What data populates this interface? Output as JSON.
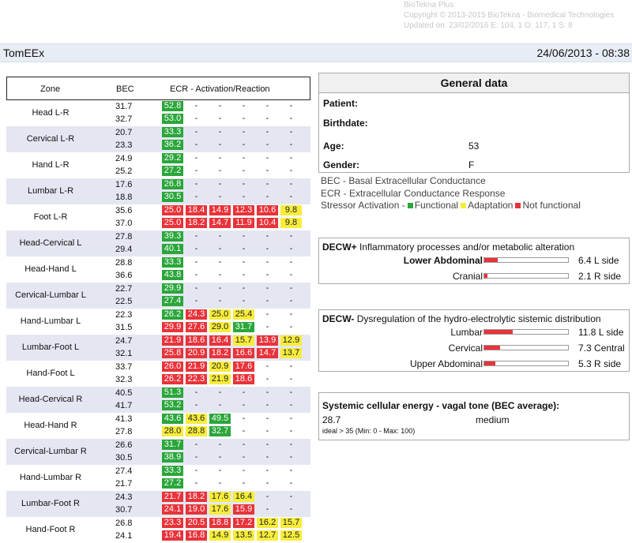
{
  "meta": {
    "product": "BioTekna Plus",
    "copyright": "Copyright © 2013-2015 BioTekna - Biomedical Technologies",
    "updated": "Updated on: 23/02/2016 E: 104, 1 O: 117, 1 S: 8"
  },
  "titlebar": {
    "app": "TomEEx",
    "datetime": "24/06/2013 - 08:38"
  },
  "table": {
    "headers": {
      "zone": "Zone",
      "bec": "BEC",
      "ecr": "ECR - Activation/Reaction"
    },
    "rows": [
      {
        "zone": "Head L-R",
        "bec": [
          "31.7",
          "32.7"
        ],
        "l1": [
          [
            "52.8",
            "g"
          ],
          [
            "-",
            "n"
          ],
          [
            "-",
            "n"
          ],
          [
            "-",
            "n"
          ],
          [
            "-",
            "n"
          ],
          [
            "-",
            "n"
          ]
        ],
        "l2": [
          [
            "53.0",
            "g"
          ],
          [
            "-",
            "n"
          ],
          [
            "-",
            "n"
          ],
          [
            "-",
            "n"
          ],
          [
            "-",
            "n"
          ],
          [
            "-",
            "n"
          ]
        ]
      },
      {
        "zone": "Cervical L-R",
        "bec": [
          "20.7",
          "23.3"
        ],
        "l1": [
          [
            "33.3",
            "g"
          ],
          [
            "-",
            "n"
          ],
          [
            "-",
            "n"
          ],
          [
            "-",
            "n"
          ],
          [
            "-",
            "n"
          ],
          [
            "-",
            "n"
          ]
        ],
        "l2": [
          [
            "36.2",
            "g"
          ],
          [
            "-",
            "n"
          ],
          [
            "-",
            "n"
          ],
          [
            "-",
            "n"
          ],
          [
            "-",
            "n"
          ],
          [
            "-",
            "n"
          ]
        ]
      },
      {
        "zone": "Hand L-R",
        "bec": [
          "24.9",
          "25.2"
        ],
        "l1": [
          [
            "29.2",
            "g"
          ],
          [
            "-",
            "n"
          ],
          [
            "-",
            "n"
          ],
          [
            "-",
            "n"
          ],
          [
            "-",
            "n"
          ],
          [
            "-",
            "n"
          ]
        ],
        "l2": [
          [
            "27.2",
            "g"
          ],
          [
            "-",
            "n"
          ],
          [
            "-",
            "n"
          ],
          [
            "-",
            "n"
          ],
          [
            "-",
            "n"
          ],
          [
            "-",
            "n"
          ]
        ]
      },
      {
        "zone": "Lumbar L-R",
        "bec": [
          "17.6",
          "18.8"
        ],
        "l1": [
          [
            "26.8",
            "g"
          ],
          [
            "-",
            "n"
          ],
          [
            "-",
            "n"
          ],
          [
            "-",
            "n"
          ],
          [
            "-",
            "n"
          ],
          [
            "-",
            "n"
          ]
        ],
        "l2": [
          [
            "30.5",
            "g"
          ],
          [
            "-",
            "n"
          ],
          [
            "-",
            "n"
          ],
          [
            "-",
            "n"
          ],
          [
            "-",
            "n"
          ],
          [
            "-",
            "n"
          ]
        ]
      },
      {
        "zone": "Foot L-R",
        "bec": [
          "35.6",
          "37.0"
        ],
        "l1": [
          [
            "25.0",
            "r"
          ],
          [
            "18.4",
            "r"
          ],
          [
            "14.9",
            "r"
          ],
          [
            "12.3",
            "r"
          ],
          [
            "10.6",
            "r"
          ],
          [
            "9.8",
            "y"
          ]
        ],
        "l2": [
          [
            "25.0",
            "r"
          ],
          [
            "18.2",
            "r"
          ],
          [
            "14.7",
            "r"
          ],
          [
            "11.9",
            "r"
          ],
          [
            "10.4",
            "r"
          ],
          [
            "9.8",
            "y"
          ]
        ]
      },
      {
        "zone": "Head-Cervical L",
        "bec": [
          "27.8",
          "29.4"
        ],
        "l1": [
          [
            "39.3",
            "g"
          ],
          [
            "-",
            "n"
          ],
          [
            "-",
            "n"
          ],
          [
            "-",
            "n"
          ],
          [
            "-",
            "n"
          ],
          [
            "-",
            "n"
          ]
        ],
        "l2": [
          [
            "40.1",
            "g"
          ],
          [
            "-",
            "n"
          ],
          [
            "-",
            "n"
          ],
          [
            "-",
            "n"
          ],
          [
            "-",
            "n"
          ],
          [
            "-",
            "n"
          ]
        ]
      },
      {
        "zone": "Head-Hand L",
        "bec": [
          "28.8",
          "36.6"
        ],
        "l1": [
          [
            "33.3",
            "g"
          ],
          [
            "-",
            "n"
          ],
          [
            "-",
            "n"
          ],
          [
            "-",
            "n"
          ],
          [
            "-",
            "n"
          ],
          [
            "-",
            "n"
          ]
        ],
        "l2": [
          [
            "43.8",
            "g"
          ],
          [
            "-",
            "n"
          ],
          [
            "-",
            "n"
          ],
          [
            "-",
            "n"
          ],
          [
            "-",
            "n"
          ],
          [
            "-",
            "n"
          ]
        ]
      },
      {
        "zone": "Cervical-Lumbar L",
        "bec": [
          "22.7",
          "22.5"
        ],
        "l1": [
          [
            "29.9",
            "g"
          ],
          [
            "-",
            "n"
          ],
          [
            "-",
            "n"
          ],
          [
            "-",
            "n"
          ],
          [
            "-",
            "n"
          ],
          [
            "-",
            "n"
          ]
        ],
        "l2": [
          [
            "27.4",
            "g"
          ],
          [
            "-",
            "n"
          ],
          [
            "-",
            "n"
          ],
          [
            "-",
            "n"
          ],
          [
            "-",
            "n"
          ],
          [
            "-",
            "n"
          ]
        ]
      },
      {
        "zone": "Hand-Lumbar L",
        "bec": [
          "22.3",
          "31.5"
        ],
        "l1": [
          [
            "26.2",
            "g"
          ],
          [
            "24.3",
            "r"
          ],
          [
            "25.0",
            "y"
          ],
          [
            "25.4",
            "y"
          ],
          [
            "-",
            "n"
          ],
          [
            "-",
            "n"
          ]
        ],
        "l2": [
          [
            "29.9",
            "r"
          ],
          [
            "27.6",
            "r"
          ],
          [
            "29.0",
            "y"
          ],
          [
            "31.7",
            "g"
          ],
          [
            "-",
            "n"
          ],
          [
            "-",
            "n"
          ]
        ]
      },
      {
        "zone": "Lumbar-Foot L",
        "bec": [
          "24.7",
          "32.1"
        ],
        "l1": [
          [
            "21.9",
            "r"
          ],
          [
            "18.6",
            "r"
          ],
          [
            "16.4",
            "r"
          ],
          [
            "15.7",
            "y"
          ],
          [
            "13.9",
            "r"
          ],
          [
            "12.9",
            "y"
          ]
        ],
        "l2": [
          [
            "25.8",
            "r"
          ],
          [
            "20.9",
            "r"
          ],
          [
            "18.2",
            "r"
          ],
          [
            "16.6",
            "r"
          ],
          [
            "14.7",
            "r"
          ],
          [
            "13.7",
            "y"
          ]
        ]
      },
      {
        "zone": "Hand-Foot L",
        "bec": [
          "33.7",
          "32.3"
        ],
        "l1": [
          [
            "26.0",
            "r"
          ],
          [
            "21.9",
            "r"
          ],
          [
            "20.9",
            "y"
          ],
          [
            "17.6",
            "r"
          ],
          [
            "-",
            "n"
          ],
          [
            "-",
            "n"
          ]
        ],
        "l2": [
          [
            "26.2",
            "r"
          ],
          [
            "22.3",
            "r"
          ],
          [
            "21.9",
            "y"
          ],
          [
            "18.6",
            "r"
          ],
          [
            "-",
            "n"
          ],
          [
            "-",
            "n"
          ]
        ]
      },
      {
        "zone": "Head-Cervical R",
        "bec": [
          "40.5",
          "41.7"
        ],
        "l1": [
          [
            "51.3",
            "g"
          ],
          [
            "-",
            "n"
          ],
          [
            "-",
            "n"
          ],
          [
            "-",
            "n"
          ],
          [
            "-",
            "n"
          ],
          [
            "-",
            "n"
          ]
        ],
        "l2": [
          [
            "53.2",
            "g"
          ],
          [
            "-",
            "n"
          ],
          [
            "-",
            "n"
          ],
          [
            "-",
            "n"
          ],
          [
            "-",
            "n"
          ],
          [
            "-",
            "n"
          ]
        ]
      },
      {
        "zone": "Head-Hand R",
        "bec": [
          "41.3",
          "27.8"
        ],
        "l1": [
          [
            "43.6",
            "g"
          ],
          [
            "43.6",
            "y"
          ],
          [
            "49.5",
            "g"
          ],
          [
            "-",
            "n"
          ],
          [
            "-",
            "n"
          ],
          [
            "-",
            "n"
          ]
        ],
        "l2": [
          [
            "28.0",
            "y"
          ],
          [
            "28.8",
            "y"
          ],
          [
            "32.7",
            "g"
          ],
          [
            "-",
            "n"
          ],
          [
            "-",
            "n"
          ],
          [
            "-",
            "n"
          ]
        ]
      },
      {
        "zone": "Cervical-Lumbar R",
        "bec": [
          "26.6",
          "30.5"
        ],
        "l1": [
          [
            "31.7",
            "g"
          ],
          [
            "-",
            "n"
          ],
          [
            "-",
            "n"
          ],
          [
            "-",
            "n"
          ],
          [
            "-",
            "n"
          ],
          [
            "-",
            "n"
          ]
        ],
        "l2": [
          [
            "38.9",
            "g"
          ],
          [
            "-",
            "n"
          ],
          [
            "-",
            "n"
          ],
          [
            "-",
            "n"
          ],
          [
            "-",
            "n"
          ],
          [
            "-",
            "n"
          ]
        ]
      },
      {
        "zone": "Hand-Lumbar R",
        "bec": [
          "27.4",
          "21.7"
        ],
        "l1": [
          [
            "33.3",
            "g"
          ],
          [
            "-",
            "n"
          ],
          [
            "-",
            "n"
          ],
          [
            "-",
            "n"
          ],
          [
            "-",
            "n"
          ],
          [
            "-",
            "n"
          ]
        ],
        "l2": [
          [
            "27.2",
            "g"
          ],
          [
            "-",
            "n"
          ],
          [
            "-",
            "n"
          ],
          [
            "-",
            "n"
          ],
          [
            "-",
            "n"
          ],
          [
            "-",
            "n"
          ]
        ]
      },
      {
        "zone": "Lumbar-Foot R",
        "bec": [
          "24.3",
          "30.7"
        ],
        "l1": [
          [
            "21.7",
            "r"
          ],
          [
            "18.2",
            "r"
          ],
          [
            "17.6",
            "y"
          ],
          [
            "16.4",
            "y"
          ],
          [
            "-",
            "n"
          ],
          [
            "-",
            "n"
          ]
        ],
        "l2": [
          [
            "24.1",
            "r"
          ],
          [
            "19.0",
            "r"
          ],
          [
            "17.6",
            "y"
          ],
          [
            "15.9",
            "r"
          ],
          [
            "-",
            "n"
          ],
          [
            "-",
            "n"
          ]
        ]
      },
      {
        "zone": "Hand-Foot R",
        "bec": [
          "26.8",
          "24.1"
        ],
        "l1": [
          [
            "23.3",
            "r"
          ],
          [
            "20.5",
            "r"
          ],
          [
            "18.8",
            "r"
          ],
          [
            "17.2",
            "r"
          ],
          [
            "16.2",
            "y"
          ],
          [
            "15.7",
            "y"
          ]
        ],
        "l2": [
          [
            "19.4",
            "r"
          ],
          [
            "16.8",
            "r"
          ],
          [
            "14.9",
            "y"
          ],
          [
            "13.5",
            "y"
          ],
          [
            "12.7",
            "y"
          ],
          [
            "12.5",
            "y"
          ]
        ]
      }
    ]
  },
  "general": {
    "title": "General data",
    "patient_label": "Patient:",
    "birthdate_label": "Birthdate:",
    "age_label": "Age:",
    "age_value": "53",
    "gender_label": "Gender:",
    "gender_value": "F"
  },
  "legend": {
    "bec": "BEC - Basal Extracellular Conductance",
    "ecr": "ECR - Extracellular Conductance Response",
    "stressor_prefix": "Stressor Activation -",
    "functional": "Functional",
    "adaptation": "Adaptation",
    "not_functional": "Not functional",
    "colors": {
      "functional": "#2aa63a",
      "adaptation": "#f7ec3c",
      "not_functional": "#e8333a"
    }
  },
  "decw_plus": {
    "title_bold": "DECW+",
    "title_rest": " Inflammatory processes and/or metabolic alteration",
    "items": [
      {
        "label": "Lower Abdominal",
        "bold": true,
        "value": "6.4",
        "side": "L side",
        "level": 0.16
      },
      {
        "label": "Cranial",
        "bold": false,
        "value": "2.1",
        "side": "R side",
        "level": 0.04
      }
    ]
  },
  "decw_minus": {
    "title_bold": "DECW-",
    "title_rest": " Dysregulation of the hydro-electrolytic sistemic distribution",
    "items": [
      {
        "label": "Lumbar",
        "bold": false,
        "value": "11.8",
        "side": "L side",
        "level": 0.34
      },
      {
        "label": "Cervical",
        "bold": false,
        "value": "7.3",
        "side": "Central",
        "level": 0.19
      },
      {
        "label": "Upper Abdominal",
        "bold": false,
        "value": "5.3",
        "side": "R side",
        "level": 0.13
      }
    ]
  },
  "energy": {
    "title": "Systemic cellular energy - vagal tone (BEC average):",
    "value": "28.7",
    "label": "medium",
    "note": "ideal > 35 (Min: 0 - Max: 100)"
  }
}
